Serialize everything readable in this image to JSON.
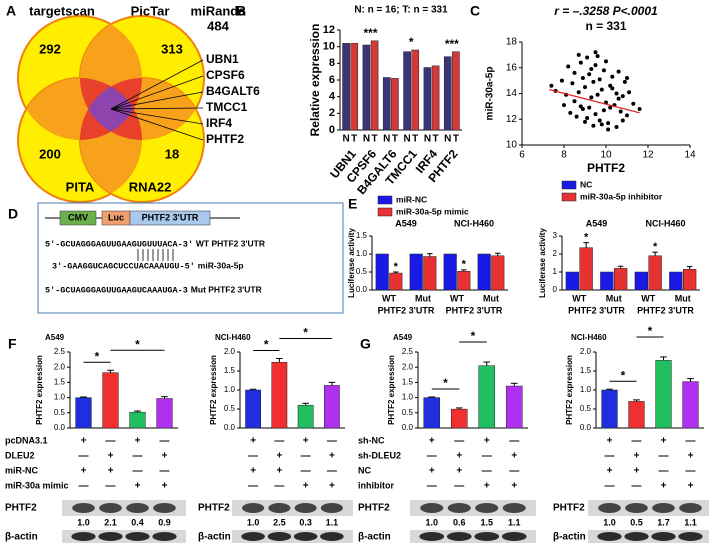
{
  "figure": {
    "panel_labels": [
      "A",
      "B",
      "C",
      "D",
      "E",
      "F",
      "G"
    ],
    "venn": {
      "sets": [
        {
          "name": "targetscan",
          "count": 292
        },
        {
          "name": "PicTar",
          "count": 313
        },
        {
          "name": "PITA",
          "count": 200
        },
        {
          "name": "RNA22",
          "count": 18
        }
      ],
      "miranda": {
        "name": "miRanda",
        "count": 484
      },
      "genes": [
        "UBN1",
        "CPSF6",
        "B4GALT6",
        "TMCC1",
        "IRF4",
        "PHTF2"
      ]
    },
    "construct": {
      "parts": [
        "CMV",
        "Luc",
        "PHTF2 3'UTR"
      ],
      "sequences": [
        {
          "seq": "5'-GCUAGGGAGUUGAAGUGUUUACA-3'",
          "label": "WT PHTF2 3'UTR"
        },
        {
          "seq": "3'-GAAGGUCAGCUCCUACAAAUGU-5'",
          "label": "miR-30a-5p"
        },
        {
          "seq": "5'-GCUAGGGAGUUGAAGUCAAAUGA-3",
          "label": "Mut PHTF2 3'UTR"
        }
      ]
    },
    "conditions": [
      {
        "rows": [
          {
            "label": "pcDNA3.1",
            "signs": [
              "+",
              "—",
              "+",
              "—"
            ]
          },
          {
            "label": "DLEU2",
            "signs": [
              "—",
              "+",
              "—",
              "+"
            ]
          },
          {
            "label": "miR-NC",
            "signs": [
              "+",
              "+",
              "—",
              "—"
            ]
          },
          {
            "label": "miR-30a mimic",
            "signs": [
              "—",
              "—",
              "+",
              "+"
            ]
          }
        ]
      },
      {
        "rows": [
          {
            "label": "sh-NC",
            "signs": [
              "+",
              "—",
              "+",
              "—"
            ]
          },
          {
            "label": "sh-DLEU2",
            "signs": [
              "—",
              "+",
              "—",
              "+"
            ]
          },
          {
            "label": "NC",
            "signs": [
              "+",
              "+",
              "—",
              "—"
            ]
          },
          {
            "label": "inhibitor",
            "signs": [
              "—",
              "—",
              "+",
              "+"
            ]
          }
        ]
      }
    ],
    "blots": [
      {
        "target": "PHTF2",
        "values": [
          "1.0",
          "2.1",
          "0.4",
          "0.9"
        ],
        "control": "β-actin"
      },
      {
        "target": "PHTF2",
        "values": [
          "1.0",
          "2.5",
          "0.3",
          "1.1"
        ],
        "control": "β-actin"
      },
      {
        "target": "PHTF2",
        "values": [
          "1.0",
          "0.6",
          "1.5",
          "1.1"
        ],
        "control": "β-actin"
      },
      {
        "target": "PHTF2",
        "values": [
          "1.0",
          "0.5",
          "1.7",
          "1.1"
        ],
        "control": "β-actin"
      }
    ]
  },
  "chart_data": [
    {
      "type": "bar",
      "title": "N: n = 16; T: n = 331",
      "y_label": "Relative expression",
      "categories": [
        "UBN1",
        "CPSF6",
        "B4GALT6",
        "TMCC1",
        "IRF4",
        "PHTF2"
      ],
      "series": [
        {
          "name": "N",
          "color": "#3d3478",
          "values": [
            10.4,
            10.2,
            6.3,
            9.4,
            7.5,
            8.8
          ]
        },
        {
          "name": "T",
          "color": "#d23a3a",
          "values": [
            10.4,
            10.7,
            6.2,
            9.6,
            7.7,
            9.4
          ]
        }
      ],
      "significance": [
        null,
        "***",
        null,
        "*",
        null,
        "***"
      ],
      "ylim": [
        0,
        12
      ],
      "yticks": [
        0,
        2,
        4,
        6,
        8,
        10,
        12
      ]
    },
    {
      "type": "scatter",
      "title": "r = –.3258 P<.0001",
      "subtitle": "n = 331",
      "x_label": "PHTF2",
      "y_label": "miR-30a-5p",
      "x": [
        7.6,
        7.9,
        8.0,
        8.2,
        8.3,
        8.4,
        8.5,
        8.5,
        8.6,
        8.7,
        8.8,
        8.8,
        8.9,
        9.0,
        9.0,
        9.1,
        9.2,
        9.2,
        9.3,
        9.4,
        9.4,
        9.5,
        9.5,
        9.6,
        9.7,
        9.7,
        9.8,
        9.9,
        9.9,
        10.0,
        10.0,
        10.1,
        10.2,
        10.2,
        10.3,
        10.4,
        10.5,
        10.5,
        10.6,
        10.7,
        10.8,
        10.9,
        11.0,
        11.1,
        11.3,
        11.6,
        8.1,
        8.7,
        9.1,
        9.6,
        10.1,
        10.6,
        9.3,
        8.9,
        9.8,
        10.3,
        7.4,
        11.0,
        9.5,
        10.8
      ],
      "y": [
        14.2,
        15.0,
        13.1,
        16.1,
        12.5,
        14.8,
        13.4,
        15.6,
        12.2,
        14.1,
        16.4,
        13.0,
        15.2,
        11.8,
        14.5,
        16.8,
        12.9,
        15.5,
        13.7,
        11.5,
        14.9,
        12.4,
        16.2,
        13.9,
        15.1,
        11.9,
        14.3,
        12.7,
        15.8,
        13.3,
        16.5,
        11.7,
        14.6,
        12.9,
        15.3,
        13.1,
        14.0,
        11.4,
        15.7,
        12.6,
        13.8,
        14.9,
        12.3,
        14.1,
        13.2,
        12.8,
        13.9,
        17.0,
        12.1,
        16.9,
        11.2,
        13.6,
        15.9,
        12.8,
        11.6,
        14.4,
        14.6,
        15.2,
        17.2,
        11.9
      ],
      "color": "#000000",
      "trend": {
        "x": [
          7.3,
          11.6
        ],
        "y": [
          14.3,
          12.5
        ],
        "color": "#e02020"
      },
      "xlim": [
        6,
        14
      ],
      "xticks": [
        6,
        8,
        10,
        12,
        14
      ],
      "ylim": [
        10,
        18
      ],
      "yticks": [
        10,
        12,
        14,
        16,
        18
      ]
    },
    {
      "type": "bar",
      "y_label": "Luciferase activity",
      "groups": [
        "A549",
        "NCI-H460"
      ],
      "x_label": "PHTF2 3'UTR",
      "categories": [
        "WT",
        "Mut",
        "WT",
        "Mut"
      ],
      "series": [
        {
          "name": "miR-NC",
          "color": "#1a1ae6",
          "values": [
            1.0,
            1.0,
            1.0,
            1.0
          ]
        },
        {
          "name": "miR-30a-5p mimic",
          "color": "#e63232",
          "values": [
            0.47,
            0.93,
            0.52,
            0.95
          ],
          "errors": [
            0.03,
            0.08,
            0.04,
            0.07
          ],
          "significance": [
            "*",
            null,
            "*",
            null
          ]
        }
      ],
      "ylim": [
        0,
        1.5
      ],
      "yticks": [
        {
          "value": 0,
          "label": "0.0"
        },
        0.5,
        {
          "value": 1,
          "label": "1.0"
        },
        1.5
      ],
      "legend": "top"
    },
    {
      "type": "bar",
      "y_label": "Luciferase activity",
      "groups": [
        "A549",
        "NCI-H460"
      ],
      "x_label": "PHTF2 3'UTR",
      "categories": [
        "WT",
        "Mut",
        "WT",
        "Mut"
      ],
      "series": [
        {
          "name": "NC",
          "color": "#1a1ae6",
          "values": [
            1,
            1,
            1,
            1
          ]
        },
        {
          "name": "miR-30a-5p inhibitor",
          "color": "#e63232",
          "values": [
            2.35,
            1.2,
            1.9,
            1.15
          ],
          "errors": [
            0.28,
            0.12,
            0.2,
            0.15
          ],
          "significance": [
            "*",
            null,
            "*",
            null
          ]
        }
      ],
      "ylim": [
        0,
        3
      ],
      "yticks": [
        0,
        1,
        2,
        3
      ],
      "legend": "top"
    },
    {
      "type": "bar",
      "title": "A549",
      "y_label": "PHTF2 expression",
      "values": [
        1.0,
        1.82,
        0.52,
        0.97
      ],
      "errors": [
        0.02,
        0.08,
        0.04,
        0.06
      ],
      "colors": [
        "#1f2fe0",
        "#f03030",
        "#20c060",
        "#b030f0"
      ],
      "brackets": [
        {
          "from": 0,
          "to": 1,
          "label": "*"
        },
        {
          "from": 1,
          "to": 3,
          "label": "*"
        }
      ],
      "ylim": [
        0,
        2.5
      ],
      "yticks": [
        {
          "value": 0,
          "label": "0.0"
        },
        0.5,
        {
          "value": 1,
          "label": "1.0"
        },
        1.5,
        {
          "value": 2,
          "label": "2.0"
        },
        2.5
      ]
    },
    {
      "type": "bar",
      "title": "NCI-H460",
      "y_label": "PHTF2 expression",
      "values": [
        1.0,
        1.73,
        0.6,
        1.12
      ],
      "errors": [
        0.02,
        0.1,
        0.05,
        0.08
      ],
      "colors": [
        "#1f2fe0",
        "#f03030",
        "#20c060",
        "#b030f0"
      ],
      "brackets": [
        {
          "from": 0,
          "to": 1,
          "label": "*"
        },
        {
          "from": 1,
          "to": 3,
          "label": "*"
        }
      ],
      "ylim": [
        0,
        2
      ],
      "yticks": [
        {
          "value": 0,
          "label": "0.0"
        },
        0.5,
        {
          "value": 1,
          "label": "1.0"
        },
        1.5,
        {
          "value": 2,
          "label": "2.0"
        }
      ]
    },
    {
      "type": "bar",
      "title": "A549",
      "y_label": "PHTF2 expression",
      "values": [
        1.0,
        0.62,
        2.05,
        1.38
      ],
      "errors": [
        0.02,
        0.04,
        0.12,
        0.09
      ],
      "colors": [
        "#1f2fe0",
        "#f03030",
        "#20c060",
        "#b030f0"
      ],
      "brackets": [
        {
          "from": 0,
          "to": 1,
          "label": "*"
        },
        {
          "from": 1,
          "to": 2,
          "label": "*"
        }
      ],
      "ylim": [
        0,
        2.5
      ],
      "yticks": [
        {
          "value": 0,
          "label": "0.0"
        },
        0.5,
        {
          "value": 1,
          "label": "1.0"
        },
        1.5,
        {
          "value": 2,
          "label": "2.0"
        },
        2.5
      ]
    },
    {
      "type": "bar",
      "title": "NCI-H460",
      "y_label": "PHTF2 expression",
      "values": [
        1.0,
        0.7,
        1.78,
        1.22
      ],
      "errors": [
        0.02,
        0.04,
        0.09,
        0.08
      ],
      "colors": [
        "#1f2fe0",
        "#f03030",
        "#20c060",
        "#b030f0"
      ],
      "brackets": [
        {
          "from": 0,
          "to": 1,
          "label": "*"
        },
        {
          "from": 1,
          "to": 2,
          "label": "*"
        }
      ],
      "ylim": [
        0,
        2
      ],
      "yticks": [
        {
          "value": 0,
          "label": "0.0"
        },
        0.5,
        {
          "value": 1,
          "label": "1.0"
        },
        1.5,
        {
          "value": 2,
          "label": "2.0"
        }
      ]
    }
  ]
}
